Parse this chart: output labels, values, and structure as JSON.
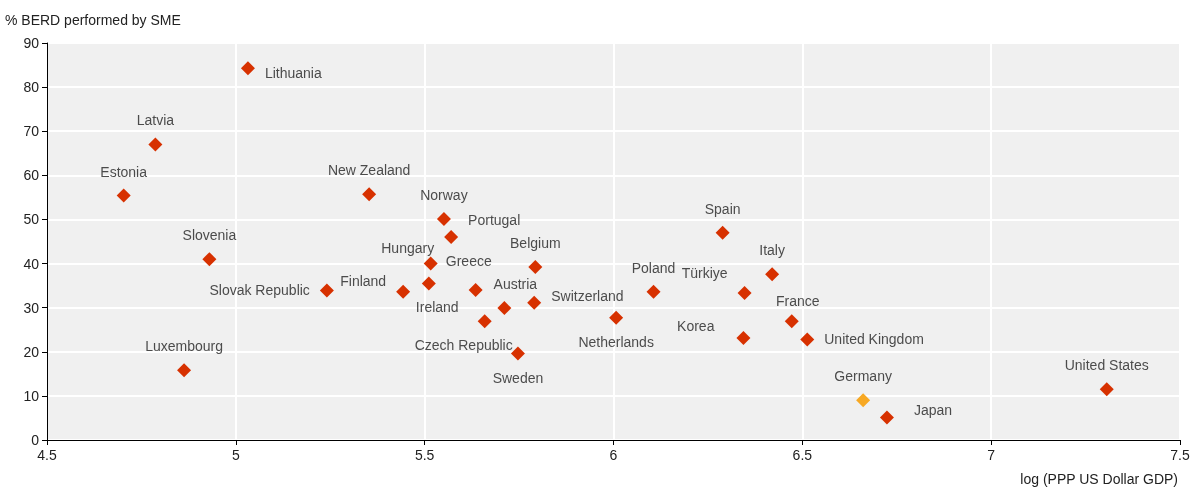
{
  "chart_data": {
    "type": "scatter",
    "xlabel": "log (PPP US Dollar GDP)",
    "ylabel": "% BERD performed by SME",
    "x": [
      5.032,
      4.787,
      4.703,
      4.93,
      4.863,
      5.353,
      5.241,
      5.551,
      5.57,
      5.516,
      5.511,
      5.443,
      5.793,
      5.711,
      5.635,
      5.659,
      5.79,
      5.747,
      6.007,
      6.289,
      6.42,
      6.347,
      6.106,
      6.472,
      6.513,
      6.344,
      6.661,
      6.724,
      7.306
    ],
    "series": [
      {
        "values": [
          84.3,
          67.0,
          55.4,
          41.0,
          15.8,
          55.7,
          33.9,
          50.1,
          46.0,
          40.0,
          35.5,
          33.6,
          39.2,
          29.9,
          34.0,
          26.9,
          31.1,
          19.6,
          27.7,
          47.0,
          37.6,
          33.3,
          33.6,
          26.9,
          22.8,
          23.1,
          9.0,
          5.1,
          11.5
        ],
        "colors": [
          "#d73100",
          "#d73100",
          "#d73100",
          "#d73100",
          "#d73100",
          "#d73100",
          "#d73100",
          "#d73100",
          "#d73100",
          "#d73100",
          "#d73100",
          "#d73100",
          "#d73100",
          "#d73100",
          "#d73100",
          "#d73100",
          "#d73100",
          "#d73100",
          "#d73100",
          "#d73100",
          "#d73100",
          "#d73100",
          "#d73100",
          "#d73100",
          "#d73100",
          "#d73100",
          "#f7a823",
          "#d73100",
          "#d73100"
        ]
      }
    ],
    "annotations": [
      {
        "text": "Lithuania",
        "x": 5.032,
        "y": 84.3
      },
      {
        "text": "Latvia",
        "x": 4.787,
        "y": 67.0
      },
      {
        "text": "Estonia",
        "x": 4.703,
        "y": 55.4
      },
      {
        "text": "Slovenia",
        "x": 4.93,
        "y": 41.0
      },
      {
        "text": "Luxembourg",
        "x": 4.863,
        "y": 15.8
      },
      {
        "text": "New Zealand",
        "x": 5.353,
        "y": 55.7
      },
      {
        "text": "Slovak Republic",
        "x": 5.241,
        "y": 33.9
      },
      {
        "text": "Norway",
        "x": 5.551,
        "y": 50.1
      },
      {
        "text": "Portugal",
        "x": 5.57,
        "y": 46.0
      },
      {
        "text": "Hungary",
        "x": 5.516,
        "y": 40.0
      },
      {
        "text": "Greece",
        "x": 5.511,
        "y": 35.5
      },
      {
        "text": "Finland",
        "x": 5.443,
        "y": 33.6
      },
      {
        "text": "Belgium",
        "x": 5.793,
        "y": 39.2
      },
      {
        "text": "Austria",
        "x": 5.711,
        "y": 29.9
      },
      {
        "text": "Ireland",
        "x": 5.635,
        "y": 34.0
      },
      {
        "text": "Czech Republic",
        "x": 5.659,
        "y": 26.9
      },
      {
        "text": "Switzerland",
        "x": 5.79,
        "y": 31.1
      },
      {
        "text": "Sweden",
        "x": 5.747,
        "y": 19.6
      },
      {
        "text": "Netherlands",
        "x": 6.007,
        "y": 27.7
      },
      {
        "text": "Spain",
        "x": 6.289,
        "y": 47.0
      },
      {
        "text": "Italy",
        "x": 6.42,
        "y": 37.6
      },
      {
        "text": "Türkiye",
        "x": 6.347,
        "y": 33.3
      },
      {
        "text": "Poland",
        "x": 6.106,
        "y": 33.6
      },
      {
        "text": "France",
        "x": 6.472,
        "y": 26.9
      },
      {
        "text": "United Kingdom",
        "x": 6.513,
        "y": 22.8
      },
      {
        "text": "Korea",
        "x": 6.344,
        "y": 23.1
      },
      {
        "text": "Germany",
        "x": 6.661,
        "y": 9.0
      },
      {
        "text": "Japan",
        "x": 6.724,
        "y": 5.1
      },
      {
        "text": "United States",
        "x": 7.306,
        "y": 11.5
      }
    ],
    "xlim": [
      4.5,
      7.5
    ],
    "xticks": [
      4.5,
      5,
      5.5,
      6,
      6.5,
      7,
      7.5
    ],
    "ylim": [
      0,
      90
    ],
    "yticks": [
      0,
      10,
      20,
      30,
      40,
      50,
      60,
      70,
      80,
      90
    ],
    "grid": true,
    "marker": "diamond"
  }
}
